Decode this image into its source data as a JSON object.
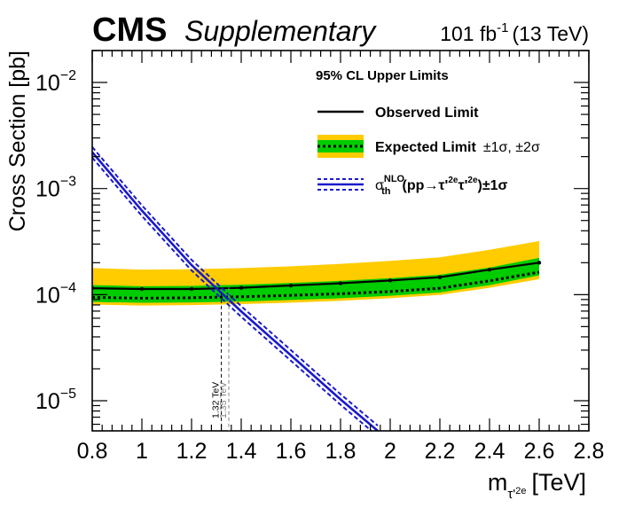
{
  "header": {
    "experiment": "CMS",
    "tag": "Supplementary",
    "lumi_value": "101 fb",
    "lumi_exp": "-1",
    "lumi_energy": "(13 TeV)"
  },
  "chart_data": {
    "type": "line",
    "title": "95% CL Upper Limits",
    "xlabel": "m",
    "xlabel_sub": "τ'",
    "xlabel_subsub": "2e",
    "xlabel_unit": "[TeV]",
    "ylabel": "Cross Section [pb]",
    "xlim": [
      0.8,
      2.8
    ],
    "ylim": [
      5.2e-06,
      0.02
    ],
    "yscale": "log",
    "x_ticks": [
      0.8,
      1.0,
      1.2,
      1.4,
      1.6,
      1.8,
      2.0,
      2.2,
      2.4,
      2.6,
      2.8
    ],
    "x_tick_labels": [
      "0.8",
      "1",
      "1.2",
      "1.4",
      "1.6",
      "1.8",
      "2",
      "2.2",
      "2.4",
      "2.6",
      "2.8"
    ],
    "y_ticks": [
      1e-05,
      0.0001,
      0.001,
      0.01
    ],
    "y_tick_base": "10",
    "y_tick_exps": [
      "−5",
      "−4",
      "−3",
      "−2"
    ],
    "masses": [
      0.8,
      1.0,
      1.2,
      1.4,
      1.6,
      1.8,
      2.0,
      2.2,
      2.4,
      2.6
    ],
    "observed": [
      0.000115,
      0.000113,
      0.000113,
      0.000116,
      0.000122,
      0.000128,
      0.000136,
      0.000146,
      0.000172,
      0.0002
    ],
    "expected": [
      9.45e-05,
      9.25e-05,
      9.35e-05,
      9.55e-05,
      9.85e-05,
      0.000102,
      0.000107,
      0.000115,
      0.000135,
      0.000163
    ],
    "band_1sigma_low": [
      8.55e-05,
      8.38e-05,
      8.45e-05,
      8.62e-05,
      8.9e-05,
      9.25e-05,
      9.75e-05,
      0.000105,
      0.000123,
      0.000152
    ],
    "band_1sigma_high": [
      0.000123,
      0.00012,
      0.000121,
      0.000124,
      0.000129,
      0.000135,
      0.000143,
      0.000154,
      0.00018,
      0.000222
    ],
    "band_2sigma_low": [
      8.05e-05,
      7.9e-05,
      7.98e-05,
      8.15e-05,
      8.4e-05,
      8.75e-05,
      9.25e-05,
      9.95e-05,
      0.000116,
      0.00014
    ],
    "band_2sigma_high": [
      0.000178,
      0.000172,
      0.000174,
      0.000178,
      0.000185,
      0.000195,
      0.000208,
      0.000225,
      0.000265,
      0.00032
    ],
    "theory": {
      "x": [
        0.8,
        1.0,
        1.2,
        1.4,
        1.6,
        1.8,
        1.95
      ],
      "y": [
        0.0022,
        0.00062,
        0.00019,
        6.95e-05,
        2.68e-05,
        1.03e-05,
        5.2e-06
      ],
      "band_frac_up": 0.12,
      "band_frac_down": 0.11
    },
    "crossings": [
      {
        "x": 1.32,
        "y": 0.000103,
        "label": "1.32 TeV",
        "type": "expected"
      },
      {
        "x": 1.35,
        "y": 0.000118,
        "label": "1.35 TeV",
        "type": "observed"
      }
    ],
    "legend": {
      "title": "95% CL Upper Limits",
      "observed": "Observed Limit",
      "expected_main": "Expected Limit",
      "expected_sigma": "±1σ,  ±2σ",
      "theory_sigma": "σ",
      "theory_sup": "NLO",
      "theory_sub": "th",
      "theory_proc": "(pp→τ'",
      "theory_sup1": "2e",
      "theory_mid": "τ'",
      "theory_sup2": "2e",
      "theory_end": ")±1σ"
    },
    "colors": {
      "green": "#00cc00",
      "yellow": "#ffcc00",
      "blue": "#1a1acc",
      "observed": "#000000",
      "expected": "#000000",
      "crossing_expected": "#000000",
      "crossing_observed": "#808080"
    }
  }
}
